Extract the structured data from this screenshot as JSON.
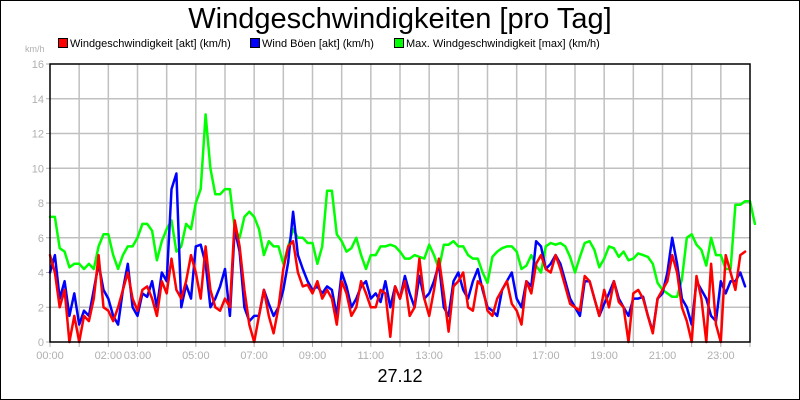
{
  "title": "Windgeschwindigkeiten [pro Tag]",
  "y_unit": "km/h",
  "date_label": "27.12",
  "legend": [
    {
      "label": "Windgeschwindigkeit [akt] (km/h)",
      "color": "#ff0000"
    },
    {
      "label": "Wind Böen [akt] (km/h)",
      "color": "#0000ff"
    },
    {
      "label": "Max. Windgeschwindigkeit [max] (km/h)",
      "color": "#00ff00"
    }
  ],
  "chart_data": {
    "type": "line",
    "title": "Windgeschwindigkeiten [pro Tag]",
    "xlabel": "27.12",
    "ylabel": "km/h",
    "ylim": [
      0,
      16
    ],
    "yticks": [
      0,
      2,
      4,
      6,
      8,
      10,
      12,
      14,
      16
    ],
    "xlim_hours": [
      0,
      24
    ],
    "sample_interval_minutes": 10,
    "grid": true,
    "legend_position": "top",
    "x_tick_labels": [
      {
        "hour": 0,
        "label": "00:00"
      },
      {
        "hour": 2,
        "label": "02:00"
      },
      {
        "hour": 3,
        "label": "03:00"
      },
      {
        "hour": 5,
        "label": "05:00"
      },
      {
        "hour": 7,
        "label": "07:00"
      },
      {
        "hour": 9,
        "label": "09:00"
      },
      {
        "hour": 11,
        "label": "11:00"
      },
      {
        "hour": 13,
        "label": "13:00"
      },
      {
        "hour": 15,
        "label": "15:00"
      },
      {
        "hour": 17,
        "label": "17:00"
      },
      {
        "hour": 19,
        "label": "19:00"
      },
      {
        "hour": 21,
        "label": "21:00"
      },
      {
        "hour": 23,
        "label": "23:00"
      }
    ],
    "series": [
      {
        "name": "Max. Windgeschwindigkeit [max] (km/h)",
        "color": "#00ff00",
        "values": [
          7.2,
          7.2,
          5.4,
          5.2,
          4.3,
          4.5,
          4.5,
          4.2,
          4.5,
          4.2,
          5.5,
          6.2,
          6.2,
          5.0,
          4.2,
          5.0,
          5.5,
          5.5,
          6.0,
          6.8,
          6.8,
          6.4,
          4.7,
          5.8,
          6.5,
          7.0,
          5.2,
          5.5,
          6.8,
          6.5,
          8.0,
          8.8,
          13.1,
          10.0,
          8.5,
          8.5,
          8.8,
          8.8,
          6.5,
          6.0,
          7.2,
          7.5,
          7.2,
          6.5,
          5.0,
          5.8,
          5.5,
          5.5,
          4.5,
          5.5,
          6.5,
          6.0,
          6.0,
          5.7,
          5.7,
          4.5,
          5.5,
          8.7,
          8.7,
          6.2,
          5.8,
          5.2,
          5.4,
          6.0,
          5.0,
          4.2,
          5.0,
          5.0,
          5.5,
          5.5,
          5.6,
          5.5,
          5.2,
          4.8,
          4.8,
          5.0,
          4.9,
          4.8,
          5.6,
          5.0,
          4.2,
          5.6,
          5.6,
          5.8,
          5.5,
          5.5,
          5.0,
          4.8,
          4.8,
          4.0,
          3.4,
          4.9,
          5.2,
          5.4,
          5.5,
          5.5,
          5.2,
          4.2,
          4.4,
          5.0,
          4.4,
          4.0,
          5.5,
          5.7,
          5.6,
          5.7,
          5.5,
          4.9,
          4.0,
          4.9,
          5.7,
          5.8,
          5.3,
          4.3,
          4.8,
          5.5,
          5.4,
          4.9,
          5.2,
          4.7,
          4.8,
          5.1,
          5.0,
          4.9,
          4.5,
          3.4,
          3.0,
          2.8,
          2.6,
          2.6,
          3.6,
          6.0,
          6.2,
          5.6,
          5.3,
          4.4,
          6.0,
          5.0,
          5.0,
          4.2,
          4.2,
          7.9,
          7.9,
          8.1,
          8.1,
          6.8
        ]
      },
      {
        "name": "Wind Böen [akt] (km/h)",
        "color": "#0000ff",
        "values": [
          4.0,
          5.0,
          2.5,
          3.5,
          1.5,
          2.8,
          1.0,
          1.8,
          1.5,
          3.0,
          4.5,
          3.0,
          2.5,
          1.5,
          1.0,
          3.0,
          4.5,
          2.0,
          1.5,
          2.8,
          2.6,
          3.5,
          2.0,
          4.0,
          3.5,
          8.8,
          9.7,
          2.0,
          3.3,
          2.5,
          5.5,
          5.6,
          4.5,
          2.0,
          2.5,
          3.2,
          4.2,
          1.5,
          6.5,
          5.2,
          2.0,
          1.2,
          1.5,
          1.5,
          3.0,
          2.2,
          1.5,
          2.0,
          3.0,
          4.6,
          7.5,
          5.0,
          4.2,
          3.5,
          3.0,
          3.2,
          2.8,
          3.2,
          3.0,
          1.5,
          4.0,
          3.2,
          2.0,
          2.5,
          3.2,
          3.5,
          2.5,
          2.8,
          2.3,
          3.5,
          2.0,
          3.2,
          2.5,
          3.8,
          2.8,
          2.0,
          3.8,
          2.5,
          2.8,
          3.5,
          4.5,
          2.0,
          1.5,
          3.5,
          4.0,
          3.0,
          2.5,
          3.5,
          4.2,
          3.0,
          2.0,
          1.8,
          1.5,
          3.0,
          3.5,
          4.0,
          2.5,
          2.0,
          3.5,
          3.2,
          5.8,
          5.5,
          4.2,
          4.5,
          5.0,
          4.5,
          3.5,
          2.5,
          2.0,
          1.5,
          3.5,
          3.5,
          2.5,
          1.5,
          2.2,
          2.8,
          3.5,
          2.5,
          2.0,
          1.5,
          2.5,
          2.5,
          2.6,
          1.5,
          0.6,
          2.5,
          2.8,
          4.0,
          6.0,
          4.5,
          2.5,
          2.0,
          1.0,
          3.5,
          3.0,
          2.5,
          1.5,
          1.2,
          3.5,
          2.8,
          3.5,
          3.5,
          4.0,
          3.2
        ]
      },
      {
        "name": "Windgeschwindigkeit [akt] (km/h)",
        "color": "#ff0000",
        "values": [
          5.0,
          4.0,
          2.0,
          3.0,
          0.0,
          1.5,
          0.0,
          1.5,
          1.2,
          2.5,
          5.0,
          2.0,
          1.8,
          1.2,
          2.0,
          3.0,
          4.0,
          2.5,
          1.8,
          3.0,
          3.2,
          2.5,
          1.5,
          3.5,
          2.8,
          4.8,
          3.0,
          2.5,
          3.5,
          5.0,
          4.0,
          2.5,
          5.5,
          3.0,
          2.0,
          1.8,
          2.5,
          2.0,
          7.0,
          5.5,
          3.0,
          1.0,
          0.0,
          1.5,
          3.0,
          1.5,
          0.5,
          2.0,
          4.2,
          5.5,
          5.8,
          4.0,
          3.2,
          3.3,
          2.8,
          3.5,
          2.5,
          3.0,
          2.5,
          1.0,
          3.5,
          2.8,
          1.5,
          2.0,
          3.5,
          2.8,
          2.0,
          2.0,
          3.0,
          2.8,
          0.3,
          3.2,
          2.5,
          3.5,
          1.5,
          2.0,
          4.8,
          2.5,
          1.5,
          3.0,
          4.8,
          2.8,
          0.6,
          3.2,
          3.5,
          4.0,
          2.0,
          1.8,
          3.5,
          3.2,
          1.8,
          1.5,
          2.5,
          3.0,
          3.5,
          2.2,
          1.8,
          1.0,
          3.5,
          2.8,
          4.5,
          5.0,
          4.2,
          4.0,
          5.0,
          4.2,
          3.2,
          2.2,
          2.0,
          1.8,
          3.8,
          3.5,
          2.5,
          1.5,
          3.0,
          2.0,
          3.5,
          2.3,
          2.0,
          0.0,
          2.8,
          3.0,
          2.5,
          1.5,
          0.5,
          2.5,
          3.0,
          3.5,
          5.0,
          4.0,
          2.0,
          1.2,
          0.0,
          3.8,
          2.5,
          0.0,
          4.5,
          1.0,
          0.0,
          5.0,
          4.0,
          3.0,
          5.0,
          5.2
        ]
      }
    ]
  }
}
